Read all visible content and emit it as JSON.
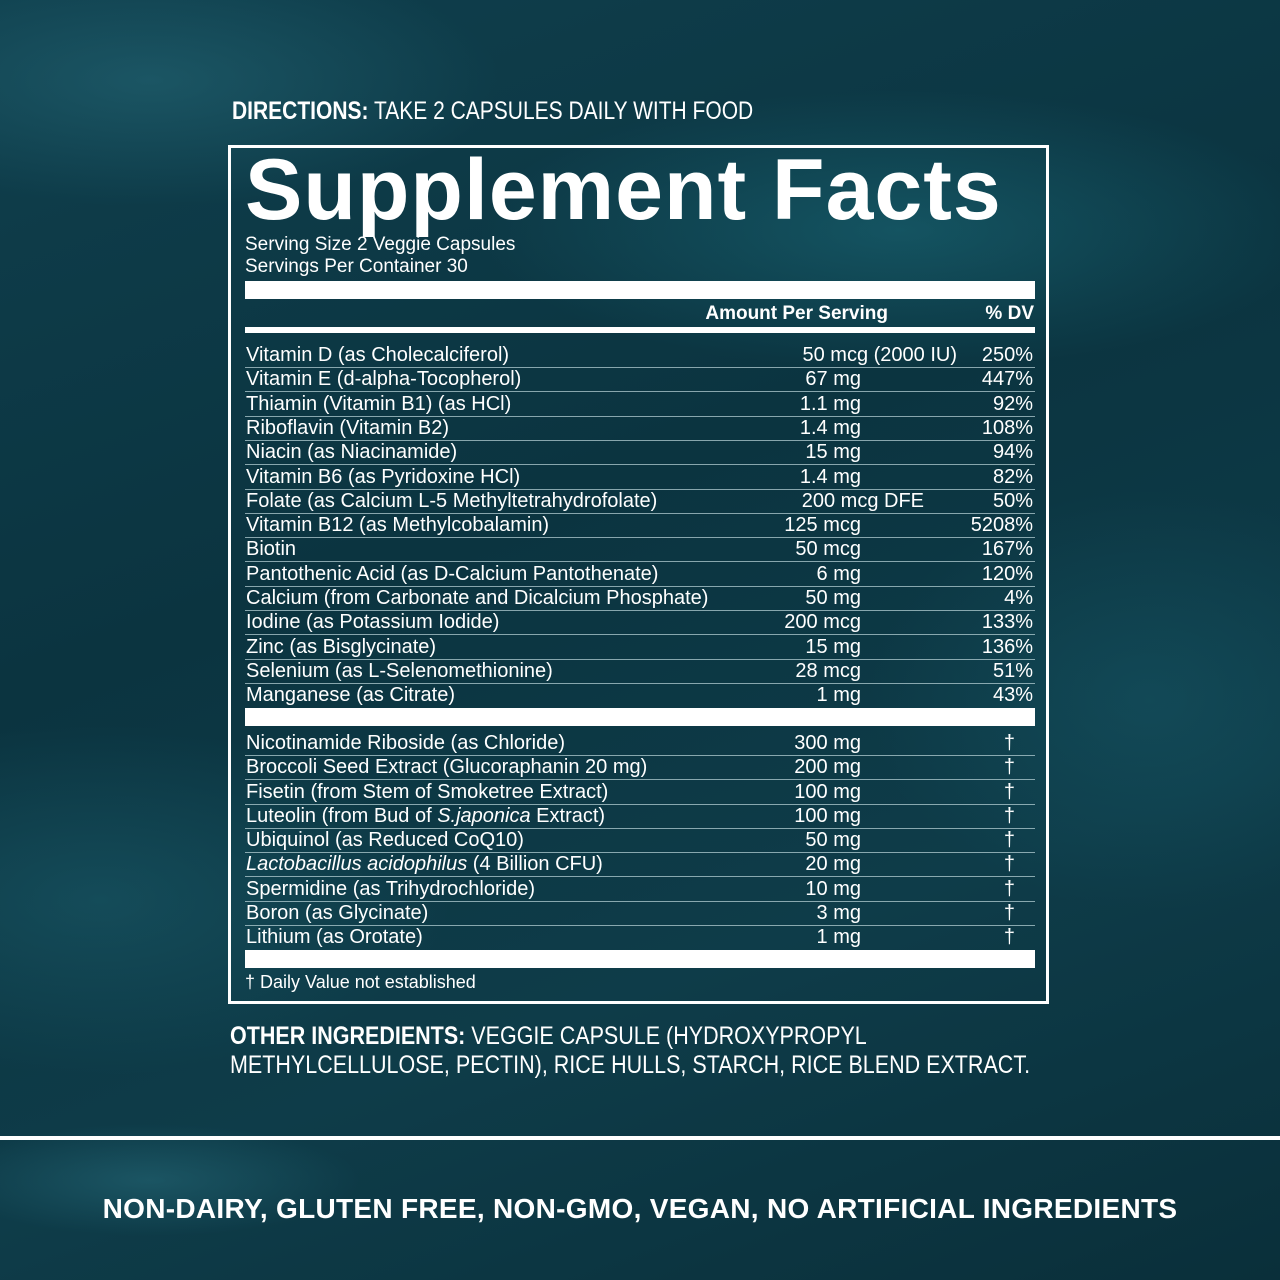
{
  "directions": {
    "label": "DIRECTIONS:",
    "text": "TAKE 2 CAPSULES DAILY WITH FOOD"
  },
  "facts": {
    "title": "Supplement Facts",
    "serving_size": "Serving Size 2 Veggie Capsules",
    "servings_per_container": "Servings Per Container 30",
    "col_amount": "Amount Per Serving",
    "col_dv": "% DV",
    "vitamins": [
      {
        "name": "Vitamin D (as Cholecalciferol)",
        "amount": "50 mcg (2000 IU)",
        "dv": "250%"
      },
      {
        "name": "Vitamin E (d-alpha-Tocopherol)",
        "amount": "67 mg",
        "dv": "447%"
      },
      {
        "name": "Thiamin (Vitamin B1) (as HCl)",
        "amount": "1.1 mg",
        "dv": "92%"
      },
      {
        "name": "Riboflavin (Vitamin B2)",
        "amount": "1.4 mg",
        "dv": "108%"
      },
      {
        "name": "Niacin (as Niacinamide)",
        "amount": "15 mg",
        "dv": "94%"
      },
      {
        "name": "Vitamin B6 (as Pyridoxine HCl)",
        "amount": "1.4 mg",
        "dv": "82%"
      },
      {
        "name": "Folate (as Calcium L-5 Methyltetrahydrofolate)",
        "amount": "200 mcg DFE",
        "dv": "50%"
      },
      {
        "name": "Vitamin B12 (as Methylcobalamin)",
        "amount": "125 mcg",
        "dv": "5208%"
      },
      {
        "name": "Biotin",
        "amount": "50 mcg",
        "dv": "167%"
      },
      {
        "name": "Pantothenic Acid (as D-Calcium Pantothenate)",
        "amount": "6 mg",
        "dv": "120%"
      },
      {
        "name": "Calcium (from Carbonate and Dicalcium Phosphate)",
        "amount": "50 mg",
        "dv": "4%"
      },
      {
        "name": "Iodine (as Potassium Iodide)",
        "amount": "200 mcg",
        "dv": "133%"
      },
      {
        "name": "Zinc (as Bisglycinate)",
        "amount": "15 mg",
        "dv": "136%"
      },
      {
        "name": "Selenium (as L-Selenomethionine)",
        "amount": "28 mcg",
        "dv": "51%"
      },
      {
        "name": "Manganese (as Citrate)",
        "amount": "1 mg",
        "dv": "43%"
      }
    ],
    "others": [
      {
        "name": "Nicotinamide Riboside (as Chloride)",
        "amount": "300 mg",
        "dv": "†"
      },
      {
        "name": "Broccoli Seed Extract (Glucoraphanin 20 mg)",
        "amount": "200 mg",
        "dv": "†"
      },
      {
        "name": "Fisetin (from Stem of Smoketree Extract)",
        "amount": "100 mg",
        "dv": "†"
      },
      {
        "name_pre": "Luteolin (from Bud of ",
        "name_italic": "S.japonica",
        "name_post": " Extract)",
        "amount": "100 mg",
        "dv": "†"
      },
      {
        "name": "Ubiquinol (as Reduced CoQ10)",
        "amount": "50 mg",
        "dv": "†"
      },
      {
        "name_pre": "",
        "name_italic": "Lactobacillus acidophilus",
        "name_post": " (4 Billion CFU)",
        "amount": "20 mg",
        "dv": "†"
      },
      {
        "name": "Spermidine (as Trihydrochloride)",
        "amount": "10 mg",
        "dv": "†"
      },
      {
        "name": "Boron (as Glycinate)",
        "amount": "3 mg",
        "dv": "†"
      },
      {
        "name": "Lithium (as Orotate)",
        "amount": "1 mg",
        "dv": "†"
      }
    ],
    "footnote": "† Daily Value not established"
  },
  "other_ingredients": {
    "label": "OTHER INGREDIENTS:",
    "line1": "VEGGIE CAPSULE (HYDROXYPROPYL",
    "line2": "METHYLCELLULOSE, PECTIN), RICE HULLS, STARCH, RICE BLEND EXTRACT."
  },
  "claims": "NON-DAIRY, GLUTEN FREE, NON-GMO, VEGAN, NO ARTIFICIAL INGREDIENTS",
  "colors": {
    "background": "#0c3642",
    "text": "#ffffff"
  }
}
